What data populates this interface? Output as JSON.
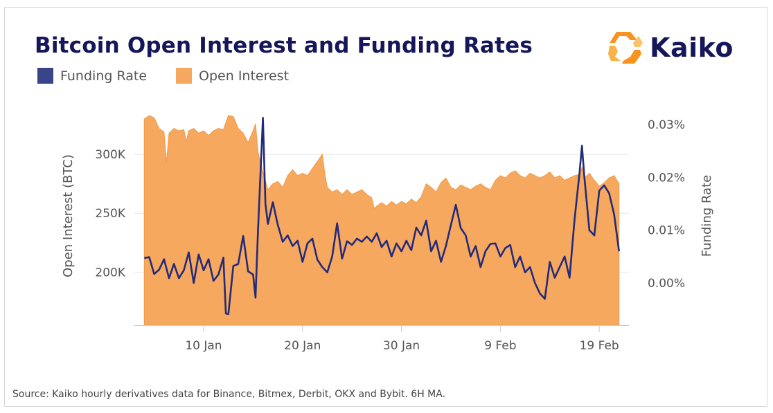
{
  "header": {
    "title": "Bitcoin Open Interest and Funding Rates",
    "logo_text": "Kaiko"
  },
  "footer": {
    "source": "Source: Kaiko hourly derivatives data for Binance, Bitmex, Derbit, OKX and Bybit. 6H MA."
  },
  "colors": {
    "open_interest": "#f5a85e",
    "funding_rate": "#232a7a",
    "title": "#16165a",
    "logo_orange": "#f7931e"
  },
  "chart_data": {
    "type": "area",
    "x_axis": {
      "type": "date",
      "range": [
        "2023-01-03",
        "2023-02-22"
      ],
      "ticks": [
        {
          "date": "2023-01-10",
          "label": "10 Jan"
        },
        {
          "date": "2023-01-20",
          "label": "20 Jan"
        },
        {
          "date": "2023-01-30",
          "label": "30 Jan"
        },
        {
          "date": "2023-02-09",
          "label": "9 Feb"
        },
        {
          "date": "2023-02-19",
          "label": "19 Feb"
        }
      ]
    },
    "y_left": {
      "label": "Open Interest (BTC)",
      "range": [
        155000,
        340000
      ],
      "ticks": [
        {
          "value": 200000,
          "label": "200K"
        },
        {
          "value": 250000,
          "label": "250K"
        },
        {
          "value": 300000,
          "label": "300K"
        }
      ]
    },
    "y_right": {
      "label": "Funding Rate",
      "range": [
        -0.008,
        0.0333
      ],
      "ticks": [
        {
          "value": 0.0,
          "label": "0.00%"
        },
        {
          "value": 0.01,
          "label": "0.01%"
        },
        {
          "value": 0.02,
          "label": "0.02%"
        },
        {
          "value": 0.03,
          "label": "0.03%"
        }
      ]
    },
    "grid": true,
    "legend": "top-left",
    "series": [
      {
        "name": "Open Interest",
        "axis": "left",
        "type": "area",
        "points": [
          [
            "2023-01-04",
            330000
          ],
          [
            "2023-01-04T12",
            333000
          ],
          [
            "2023-01-05",
            331000
          ],
          [
            "2023-01-05T12",
            322000
          ],
          [
            "2023-01-06",
            319000
          ],
          [
            "2023-01-06T06",
            293000
          ],
          [
            "2023-01-06T12",
            318000
          ],
          [
            "2023-01-07",
            322000
          ],
          [
            "2023-01-07T12",
            320000
          ],
          [
            "2023-01-08",
            321000
          ],
          [
            "2023-01-08T06",
            311000
          ],
          [
            "2023-01-08T12",
            320000
          ],
          [
            "2023-01-09",
            322000
          ],
          [
            "2023-01-09T12",
            318000
          ],
          [
            "2023-01-10",
            320000
          ],
          [
            "2023-01-10T12",
            316000
          ],
          [
            "2023-01-11",
            320000
          ],
          [
            "2023-01-11T12",
            322000
          ],
          [
            "2023-01-12",
            321000
          ],
          [
            "2023-01-12T12",
            333000
          ],
          [
            "2023-01-13",
            332000
          ],
          [
            "2023-01-13T12",
            322000
          ],
          [
            "2023-01-14",
            318000
          ],
          [
            "2023-01-14T12",
            310000
          ],
          [
            "2023-01-15",
            320000
          ],
          [
            "2023-01-15T06",
            326000
          ],
          [
            "2023-01-15T12",
            302000
          ],
          [
            "2023-01-16",
            285000
          ],
          [
            "2023-01-16T12",
            270000
          ],
          [
            "2023-01-17",
            275000
          ],
          [
            "2023-01-17T12",
            277000
          ],
          [
            "2023-01-18",
            272000
          ],
          [
            "2023-01-18T12",
            282000
          ],
          [
            "2023-01-19",
            287000
          ],
          [
            "2023-01-19T12",
            282000
          ],
          [
            "2023-01-20",
            284000
          ],
          [
            "2023-01-20T12",
            282000
          ],
          [
            "2023-01-21",
            288000
          ],
          [
            "2023-01-21T12",
            294000
          ],
          [
            "2023-01-22",
            300000
          ],
          [
            "2023-01-22T06",
            284000
          ],
          [
            "2023-01-22T12",
            272000
          ],
          [
            "2023-01-23",
            268000
          ],
          [
            "2023-01-23T12",
            270000
          ],
          [
            "2023-01-24",
            266000
          ],
          [
            "2023-01-24T12",
            270000
          ],
          [
            "2023-01-25",
            266000
          ],
          [
            "2023-01-25T12",
            268000
          ],
          [
            "2023-01-26",
            270000
          ],
          [
            "2023-01-26T12",
            266000
          ],
          [
            "2023-01-27",
            263000
          ],
          [
            "2023-01-27T06",
            254000
          ],
          [
            "2023-01-27T12",
            256000
          ],
          [
            "2023-01-28",
            259000
          ],
          [
            "2023-01-28T12",
            256000
          ],
          [
            "2023-01-29",
            260000
          ],
          [
            "2023-01-29T12",
            257000
          ],
          [
            "2023-01-30",
            260000
          ],
          [
            "2023-01-30T12",
            258000
          ],
          [
            "2023-01-31",
            262000
          ],
          [
            "2023-01-31T12",
            259000
          ],
          [
            "2023-02-01",
            264000
          ],
          [
            "2023-02-01T12",
            275000
          ],
          [
            "2023-02-02",
            272000
          ],
          [
            "2023-02-02T12",
            268000
          ],
          [
            "2023-02-03",
            276000
          ],
          [
            "2023-02-03T12",
            280000
          ],
          [
            "2023-02-04",
            272000
          ],
          [
            "2023-02-04T12",
            270000
          ],
          [
            "2023-02-05",
            274000
          ],
          [
            "2023-02-05T12",
            272000
          ],
          [
            "2023-02-06",
            270000
          ],
          [
            "2023-02-06T12",
            273000
          ],
          [
            "2023-02-07",
            275000
          ],
          [
            "2023-02-07T12",
            272000
          ],
          [
            "2023-02-08",
            270000
          ],
          [
            "2023-02-08T12",
            278000
          ],
          [
            "2023-02-09",
            282000
          ],
          [
            "2023-02-09T12",
            280000
          ],
          [
            "2023-02-10",
            284000
          ],
          [
            "2023-02-10T12",
            286000
          ],
          [
            "2023-02-11",
            282000
          ],
          [
            "2023-02-11T12",
            280000
          ],
          [
            "2023-02-12",
            284000
          ],
          [
            "2023-02-12T12",
            282000
          ],
          [
            "2023-02-13",
            280000
          ],
          [
            "2023-02-13T12",
            282000
          ],
          [
            "2023-02-14",
            285000
          ],
          [
            "2023-02-14T12",
            280000
          ],
          [
            "2023-02-15",
            282000
          ],
          [
            "2023-02-15T12",
            278000
          ],
          [
            "2023-02-16",
            280000
          ],
          [
            "2023-02-16T12",
            282000
          ],
          [
            "2023-02-17",
            283000
          ],
          [
            "2023-02-17T06",
            289000
          ],
          [
            "2023-02-17T12",
            280000
          ],
          [
            "2023-02-18",
            284000
          ],
          [
            "2023-02-18T12",
            278000
          ],
          [
            "2023-02-19",
            273000
          ],
          [
            "2023-02-19T12",
            276000
          ],
          [
            "2023-02-20",
            280000
          ],
          [
            "2023-02-20T12",
            282000
          ],
          [
            "2023-02-21",
            275000
          ]
        ]
      },
      {
        "name": "Funding Rate",
        "axis": "right",
        "type": "line",
        "points": [
          [
            "2023-01-04",
            0.0047
          ],
          [
            "2023-01-04T12",
            0.0049
          ],
          [
            "2023-01-05",
            0.0017
          ],
          [
            "2023-01-05T12",
            0.0025
          ],
          [
            "2023-01-06",
            0.0045
          ],
          [
            "2023-01-06T12",
            0.0009
          ],
          [
            "2023-01-07",
            0.0036
          ],
          [
            "2023-01-07T12",
            0.0009
          ],
          [
            "2023-01-08",
            0.0024
          ],
          [
            "2023-01-08T12",
            0.0058
          ],
          [
            "2023-01-09",
            0.0
          ],
          [
            "2023-01-09T12",
            0.0054
          ],
          [
            "2023-01-10",
            0.0024
          ],
          [
            "2023-01-10T12",
            0.0045
          ],
          [
            "2023-01-11",
            0.0004
          ],
          [
            "2023-01-11T12",
            0.0016
          ],
          [
            "2023-01-12",
            0.0048
          ],
          [
            "2023-01-12T06",
            -0.0058
          ],
          [
            "2023-01-12T12",
            -0.0059
          ],
          [
            "2023-01-13",
            0.0032
          ],
          [
            "2023-01-13T12",
            0.0036
          ],
          [
            "2023-01-14",
            0.0089
          ],
          [
            "2023-01-14T12",
            0.0022
          ],
          [
            "2023-01-15",
            0.0016
          ],
          [
            "2023-01-15T06",
            -0.0028
          ],
          [
            "2023-01-15T12",
            0.01
          ],
          [
            "2023-01-16",
            0.0313
          ],
          [
            "2023-01-16T06",
            0.015
          ],
          [
            "2023-01-16T12",
            0.0112
          ],
          [
            "2023-01-17",
            0.0153
          ],
          [
            "2023-01-17T12",
            0.011
          ],
          [
            "2023-01-18",
            0.0078
          ],
          [
            "2023-01-18T12",
            0.009
          ],
          [
            "2023-01-19",
            0.007
          ],
          [
            "2023-01-19T12",
            0.008
          ],
          [
            "2023-01-20",
            0.004
          ],
          [
            "2023-01-20T12",
            0.0075
          ],
          [
            "2023-01-21",
            0.0084
          ],
          [
            "2023-01-21T12",
            0.0044
          ],
          [
            "2023-01-22",
            0.003
          ],
          [
            "2023-01-22T12",
            0.002
          ],
          [
            "2023-01-23",
            0.005
          ],
          [
            "2023-01-23T12",
            0.0113
          ],
          [
            "2023-01-24",
            0.0046
          ],
          [
            "2023-01-24T12",
            0.0079
          ],
          [
            "2023-01-25",
            0.0072
          ],
          [
            "2023-01-25T12",
            0.0084
          ],
          [
            "2023-01-26",
            0.0078
          ],
          [
            "2023-01-26T12",
            0.0088
          ],
          [
            "2023-01-27",
            0.0078
          ],
          [
            "2023-01-27T12",
            0.0094
          ],
          [
            "2023-01-28",
            0.0068
          ],
          [
            "2023-01-28T12",
            0.008
          ],
          [
            "2023-01-29",
            0.005
          ],
          [
            "2023-01-29T12",
            0.0075
          ],
          [
            "2023-01-30",
            0.006
          ],
          [
            "2023-01-30T12",
            0.008
          ],
          [
            "2023-01-31",
            0.0062
          ],
          [
            "2023-01-31T12",
            0.0105
          ],
          [
            "2023-02-01",
            0.009
          ],
          [
            "2023-02-01T12",
            0.0118
          ],
          [
            "2023-02-02",
            0.006
          ],
          [
            "2023-02-02T12",
            0.008
          ],
          [
            "2023-02-03",
            0.004
          ],
          [
            "2023-02-03T12",
            0.007
          ],
          [
            "2023-02-04",
            0.011
          ],
          [
            "2023-02-04T12",
            0.0148
          ],
          [
            "2023-02-05",
            0.0104
          ],
          [
            "2023-02-05T12",
            0.009
          ],
          [
            "2023-02-06",
            0.005
          ],
          [
            "2023-02-06T12",
            0.007
          ],
          [
            "2023-02-07",
            0.003
          ],
          [
            "2023-02-07T12",
            0.006
          ],
          [
            "2023-02-08",
            0.0074
          ],
          [
            "2023-02-08T12",
            0.0075
          ],
          [
            "2023-02-09",
            0.005
          ],
          [
            "2023-02-09T12",
            0.0066
          ],
          [
            "2023-02-10",
            0.0072
          ],
          [
            "2023-02-10T12",
            0.003
          ],
          [
            "2023-02-11",
            0.005
          ],
          [
            "2023-02-11T12",
            0.002
          ],
          [
            "2023-02-12",
            0.003
          ],
          [
            "2023-02-12T12",
            0.0
          ],
          [
            "2023-02-13",
            -0.002
          ],
          [
            "2023-02-13T12",
            -0.003
          ],
          [
            "2023-02-14",
            0.004
          ],
          [
            "2023-02-14T12",
            0.001
          ],
          [
            "2023-02-15",
            0.003
          ],
          [
            "2023-02-15T12",
            0.005
          ],
          [
            "2023-02-16",
            0.001
          ],
          [
            "2023-02-16T12",
            0.012
          ],
          [
            "2023-02-17",
            0.0208
          ],
          [
            "2023-02-17T06",
            0.026
          ],
          [
            "2023-02-17T12",
            0.02
          ],
          [
            "2023-02-18",
            0.01
          ],
          [
            "2023-02-18T12",
            0.009
          ],
          [
            "2023-02-19",
            0.0175
          ],
          [
            "2023-02-19T12",
            0.0185
          ],
          [
            "2023-02-20",
            0.017
          ],
          [
            "2023-02-20T12",
            0.013
          ],
          [
            "2023-02-21",
            0.006
          ]
        ]
      }
    ]
  }
}
